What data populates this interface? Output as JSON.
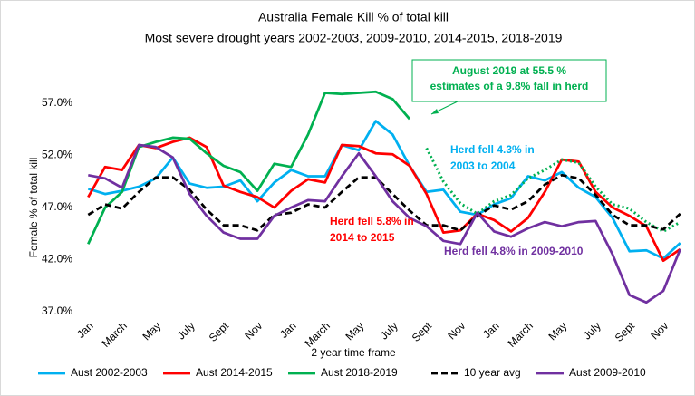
{
  "chart_data": {
    "type": "line",
    "title": [
      "Australia Female Kill % of total kill",
      "Most severe drought  years 2002-2003, 2009-2010, 2014-2015, 2018-2019"
    ],
    "x_label": "2 year time frame",
    "y_label": "Female % of total kill",
    "categories": [
      "Jan",
      null,
      "March",
      null,
      "May",
      null,
      "July",
      null,
      "Sept",
      null,
      "Nov",
      null,
      "Jan",
      null,
      "March",
      null,
      "May",
      null,
      "July",
      null,
      "Sept",
      null,
      "Nov",
      null,
      "Jan",
      null,
      "March",
      null,
      "May",
      null,
      "July",
      null,
      "Sept",
      null,
      "Nov",
      null
    ],
    "ylim": [
      37,
      57
    ],
    "yticks": [
      {
        "value": 37,
        "label": "37.0%"
      },
      {
        "value": 42,
        "label": "42.0%"
      },
      {
        "value": 47,
        "label": "47.0%"
      },
      {
        "value": 52,
        "label": "52.0%"
      },
      {
        "value": 57,
        "label": "57.0%"
      }
    ],
    "grid": false,
    "legend": "bottom",
    "series": [
      {
        "name": "Aust 2002-2003",
        "color": "#00b0f0",
        "dash": "solid",
        "values": [
          48.8,
          48.3,
          48.6,
          49.0,
          49.8,
          51.8,
          49.3,
          48.9,
          49.0,
          49.6,
          47.6,
          49.4,
          50.6,
          50.0,
          50.0,
          53.0,
          52.5,
          55.3,
          54.0,
          51.0,
          48.5,
          48.7,
          46.6,
          46.3,
          47.3,
          47.9,
          50.0,
          49.6,
          50.4,
          48.9,
          48.0,
          46.0,
          42.8,
          42.9,
          42.1,
          43.6
        ]
      },
      {
        "name": "Aust 2014-2015",
        "color": "#ff0000",
        "dash": "solid",
        "values": [
          48.0,
          50.9,
          50.6,
          53.0,
          52.7,
          53.3,
          53.7,
          52.8,
          49.1,
          48.5,
          48.0,
          47.0,
          48.6,
          49.7,
          49.4,
          53.0,
          52.9,
          52.2,
          52.1,
          51.0,
          48.3,
          44.6,
          44.8,
          46.4,
          45.8,
          44.7,
          46.0,
          48.5,
          51.6,
          51.4,
          48.5,
          47.0,
          46.2,
          45.2,
          41.9,
          43.0
        ]
      },
      {
        "name": "Aust 2018-2019",
        "color": "#00b050",
        "dash": "solid",
        "dotted_from": 19,
        "values": [
          43.5,
          47.0,
          48.5,
          52.8,
          53.3,
          53.7,
          53.6,
          52.2,
          51.0,
          50.4,
          48.6,
          51.2,
          50.9,
          54.0,
          58.0,
          57.9,
          58.0,
          58.1,
          57.4,
          55.5,
          52.7,
          49.5,
          47.4,
          46.4,
          47.6,
          48.2,
          49.8,
          50.6,
          51.6,
          51.3,
          49.0,
          47.3,
          46.9,
          45.6,
          44.7,
          45.6
        ]
      },
      {
        "name": "10 year avg",
        "color": "#000000",
        "dash": "dashed",
        "values": [
          46.3,
          47.3,
          46.9,
          48.5,
          49.9,
          49.9,
          48.7,
          46.8,
          45.3,
          45.3,
          44.8,
          46.3,
          46.5,
          47.3,
          47.0,
          48.5,
          49.9,
          49.9,
          48.3,
          46.7,
          45.3,
          45.3,
          44.8,
          46.2,
          47.2,
          46.8,
          47.6,
          49.2,
          50.1,
          49.8,
          48.2,
          46.3,
          45.3,
          45.3,
          44.9,
          46.4
        ]
      },
      {
        "name": "Aust 2009-2010",
        "color": "#7030a0",
        "dash": "solid",
        "values": [
          50.1,
          49.8,
          48.9,
          53.0,
          52.8,
          51.8,
          48.3,
          46.2,
          44.6,
          44.0,
          44.0,
          46.2,
          47.0,
          47.7,
          47.6,
          50.0,
          52.2,
          50.0,
          47.6,
          46.0,
          45.2,
          43.8,
          43.5,
          46.5,
          44.7,
          44.2,
          45.0,
          45.6,
          45.2,
          45.6,
          45.7,
          42.5,
          38.6,
          37.9,
          39.0,
          43.0
        ]
      }
    ],
    "annotations": [
      {
        "lines": [
          "August  2019 at 55.5 %",
          "estimates of a 9.8% fall in herd"
        ],
        "color": "#00b050"
      },
      {
        "lines": [
          "Herd fell 4.3% in",
          "2003 to 2004"
        ],
        "color": "#00b0f0"
      },
      {
        "lines": [
          "Herd fell 5.8% in",
          "2014 to 2015"
        ],
        "color": "#ff0000"
      },
      {
        "lines": [
          "Herd fell 4.8%  in 2009-2010"
        ],
        "color": "#7030a0"
      }
    ]
  }
}
